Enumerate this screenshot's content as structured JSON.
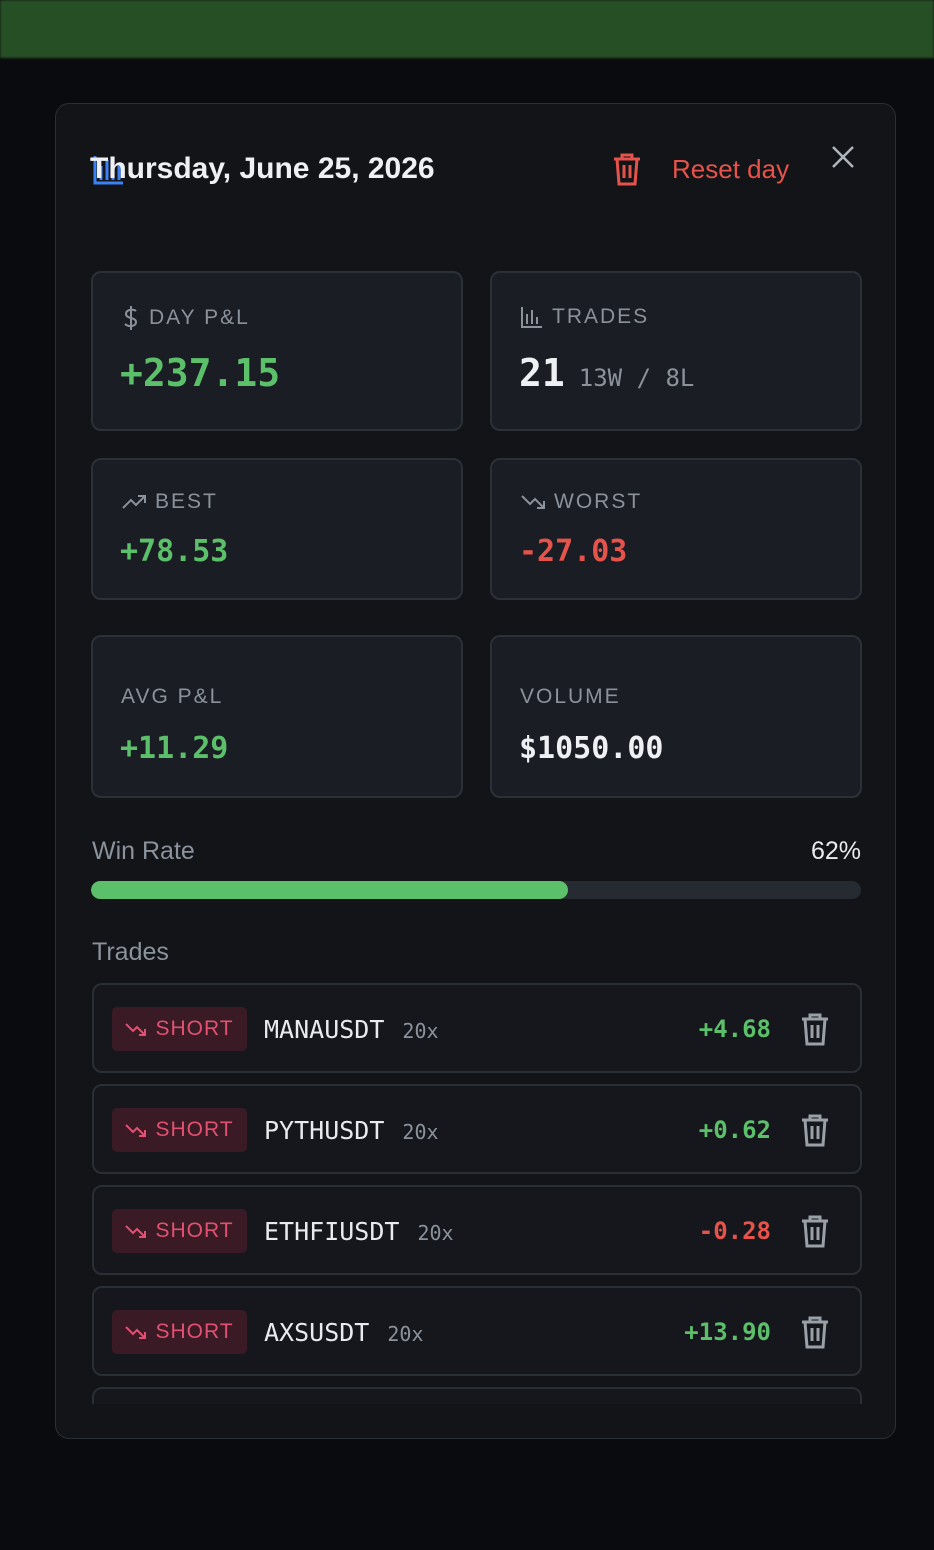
{
  "header": {
    "title": "Thursday, June 25, 2026",
    "reset": "Reset day"
  },
  "stats": [
    {
      "label": "DAY P&L",
      "value": "+237.15"
    },
    {
      "label": "TRADES",
      "value": "21",
      "detail": "13W / 8L"
    },
    {
      "label": "BEST",
      "value": "+78.53"
    },
    {
      "label": "WORST",
      "value": "-27.03"
    },
    {
      "label": "AVG P&L",
      "value": "+11.29"
    },
    {
      "label": "VOLUME",
      "value": "$1050.00"
    }
  ],
  "win_rate": {
    "label": "Win Rate",
    "value": 62,
    "value_label": "62%"
  },
  "trades": {
    "title": "Trades",
    "rows": [
      {
        "side": "SHORT",
        "symbol": "MANAUSDT",
        "leverage": "20x",
        "pnl": "+4.68"
      },
      {
        "side": "SHORT",
        "symbol": "PYTHUSDT",
        "leverage": "20x",
        "pnl": "+0.62"
      },
      {
        "side": "SHORT",
        "symbol": "ETHFIUSDT",
        "leverage": "20x",
        "pnl": "-0.28"
      },
      {
        "side": "SHORT",
        "symbol": "AXSUSDT",
        "leverage": "20x",
        "pnl": "+13.90"
      }
    ]
  }
}
